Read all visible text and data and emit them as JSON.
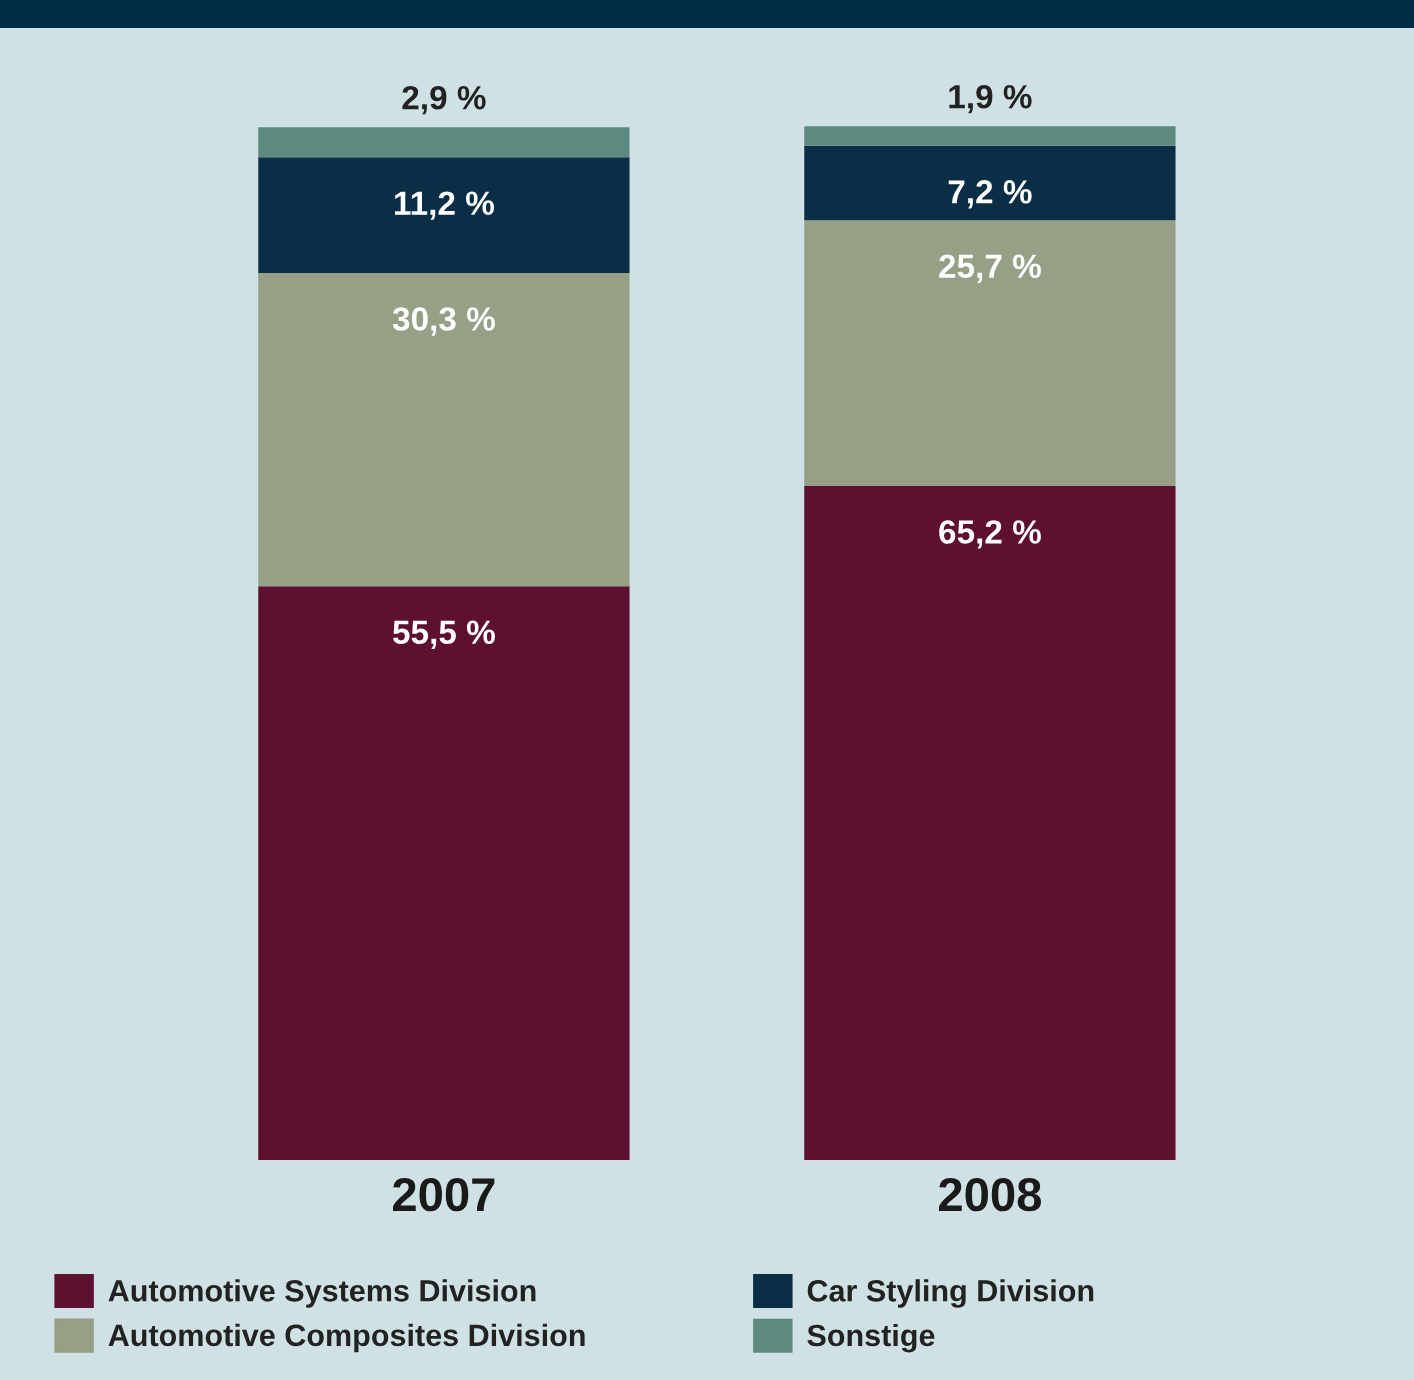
{
  "chart_data": {
    "type": "bar",
    "stacked": true,
    "categories": [
      "2007",
      "2008"
    ],
    "series": [
      {
        "name": "Automotive Systems Division",
        "color": "#5e1030",
        "values": [
          55.5,
          65.2
        ],
        "value_labels": [
          "55,5 %",
          "65,2 %"
        ]
      },
      {
        "name": "Automotive Composites Division",
        "color": "#95a086",
        "values": [
          30.3,
          25.7
        ],
        "value_labels": [
          "30,3 %",
          "25,7 %"
        ]
      },
      {
        "name": "Car Styling Division",
        "color": "#0a2e45",
        "values": [
          11.2,
          7.2
        ],
        "value_labels": [
          "11,2 %",
          "7,2 %"
        ]
      },
      {
        "name": "Sonstige",
        "color": "#5d8a80",
        "values": [
          2.9,
          1.9
        ],
        "value_labels": [
          "2,9 %",
          "1,9 %"
        ]
      }
    ],
    "grid": false,
    "legend": "bottom"
  }
}
